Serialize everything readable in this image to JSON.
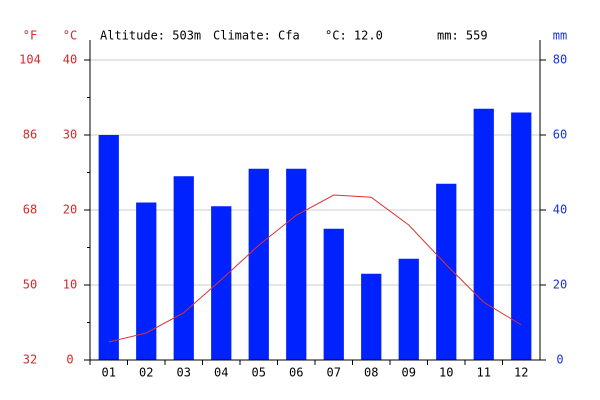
{
  "chart_data": {
    "type": "climate",
    "annotations": [
      "Altitude: 503m",
      "Climate: Cfa",
      "°C: 12.0",
      "mm: 559"
    ],
    "y_label": "°C",
    "y2_label": "mm",
    "y3_label": "°F",
    "categories": [
      "01",
      "02",
      "03",
      "04",
      "05",
      "06",
      "07",
      "08",
      "09",
      "10",
      "11",
      "12"
    ],
    "ylim": [
      0,
      40
    ],
    "yticks": [
      0,
      10,
      20,
      30,
      40
    ],
    "yticks_minor": [
      5,
      15,
      25,
      35
    ],
    "y2lim": [
      0,
      80
    ],
    "y2ticks": [
      0,
      20,
      40,
      60,
      80
    ],
    "y3lim": [
      32,
      104
    ],
    "y3ticks": [
      32,
      50,
      68,
      86,
      104
    ],
    "grid": true,
    "series": [
      {
        "type": "bar",
        "axis": "y2",
        "color": "#0022ff",
        "values": [
          60,
          42,
          49,
          41,
          51,
          51,
          35,
          23,
          27,
          47,
          67,
          66
        ]
      },
      {
        "type": "line",
        "axis": "y",
        "color": "#e03030",
        "values": [
          2.4,
          3.6,
          6.3,
          10.7,
          15.3,
          19.3,
          22.0,
          21.7,
          18.0,
          12.7,
          7.7,
          4.7
        ]
      }
    ]
  }
}
